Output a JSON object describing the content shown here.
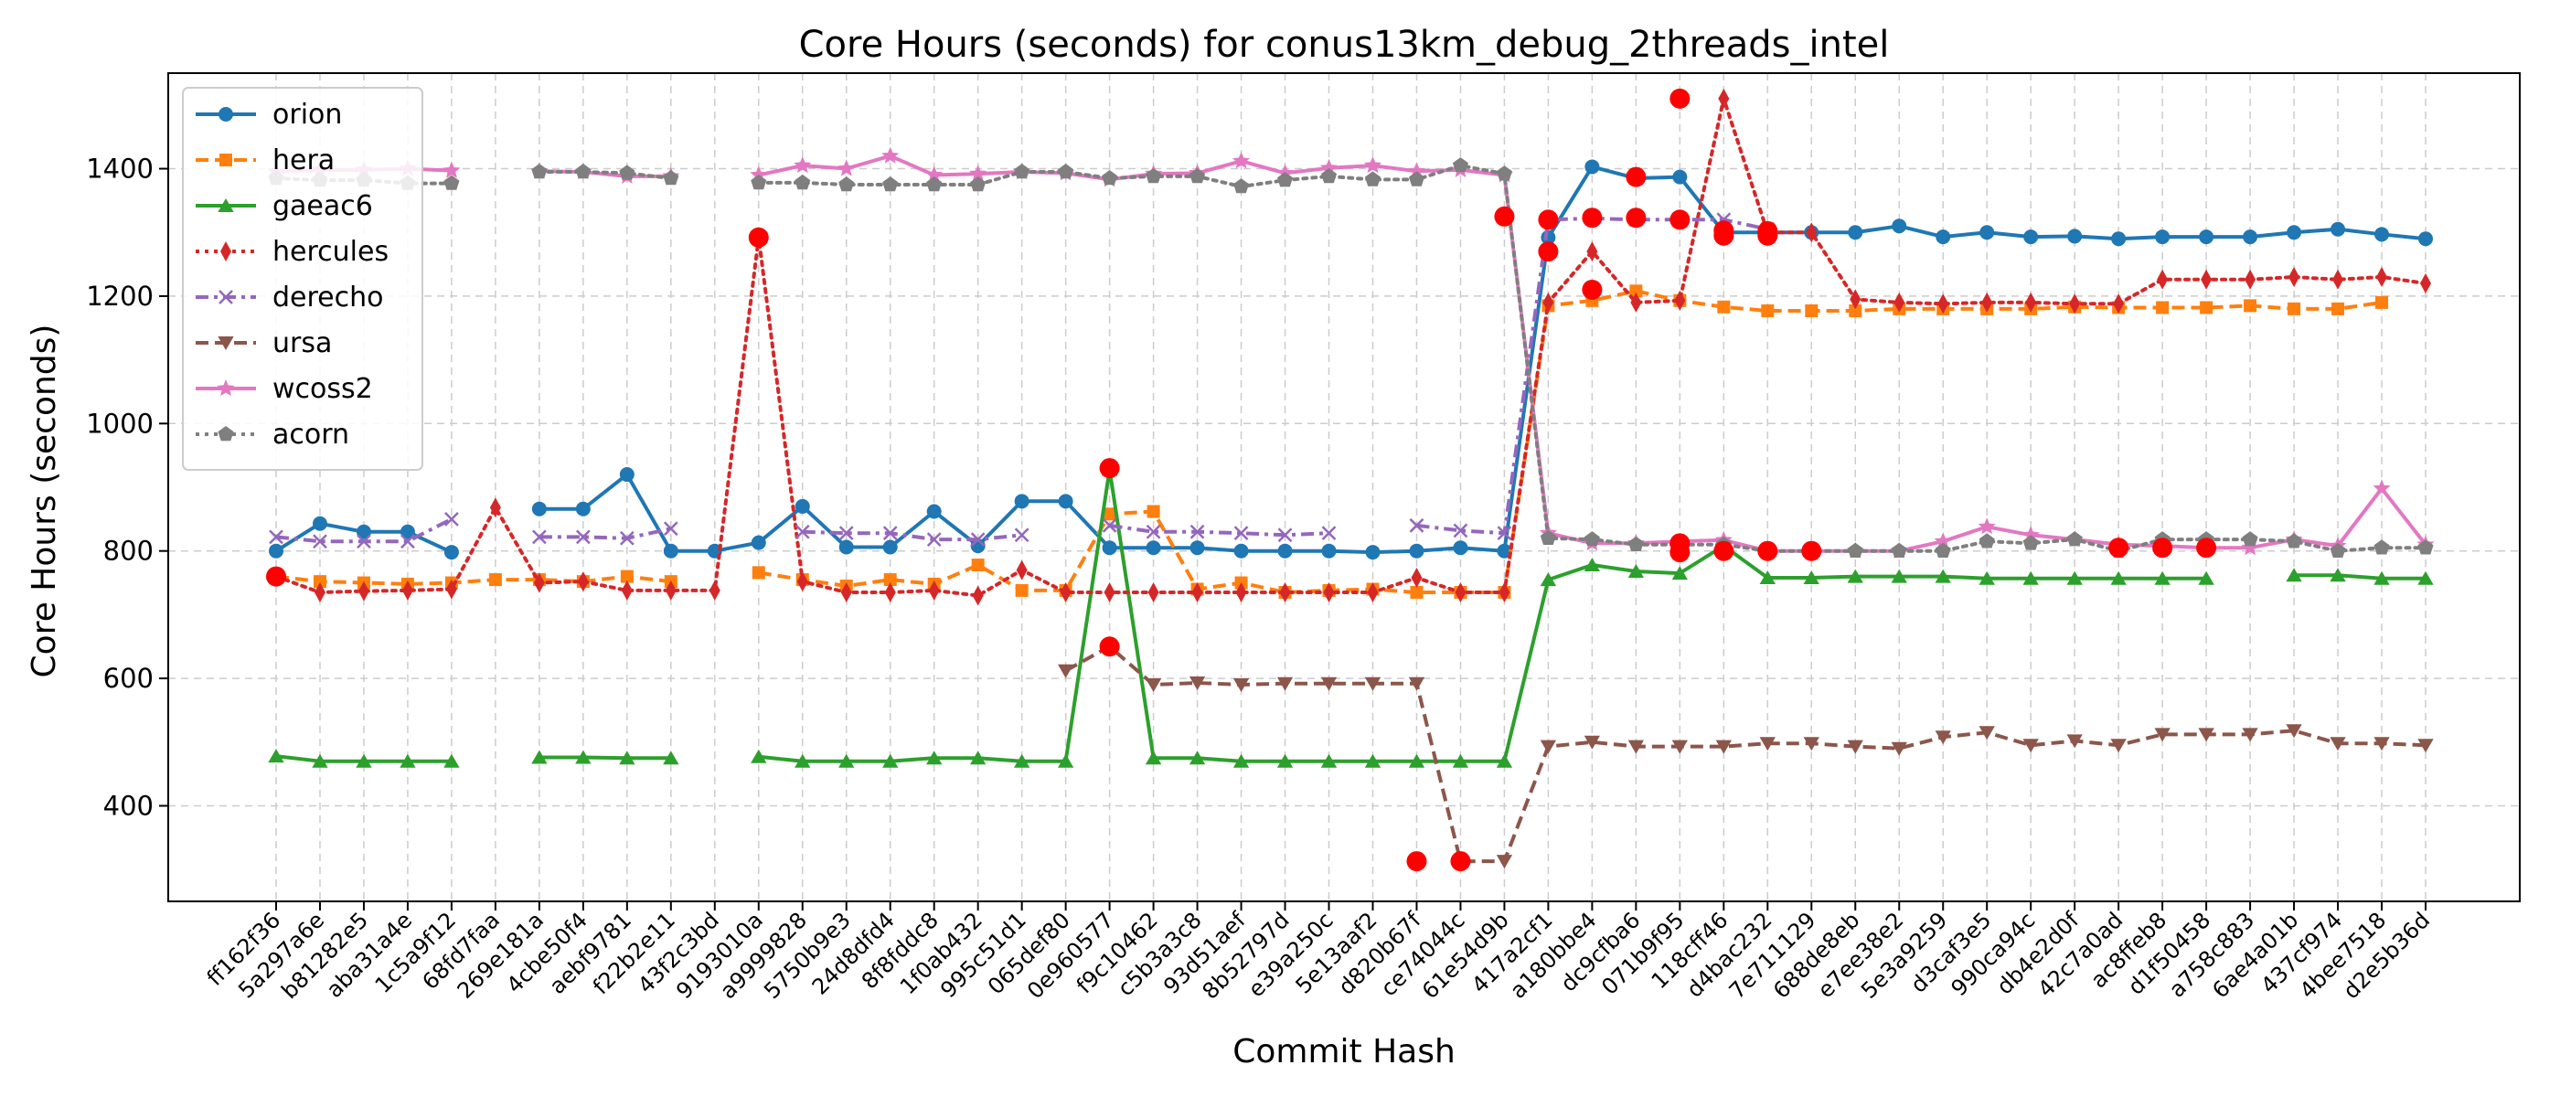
{
  "chart_data": {
    "type": "line",
    "title": "Core Hours (seconds) for conus13km_debug_2threads_intel",
    "xlabel": "Commit Hash",
    "ylabel": "Core Hours (seconds)",
    "ylim": [
      250,
      1550
    ],
    "yticks": [
      400,
      600,
      800,
      1000,
      1200,
      1400
    ],
    "grid": true,
    "legend_position": "top-left",
    "categories": [
      "ff162f36",
      "5a297a6e",
      "b81282e5",
      "aba31a4e",
      "1c5a9f12",
      "68fd7faa",
      "269e181a",
      "4cbe50f4",
      "aebf9781",
      "f22b2e11",
      "43f2c3bd",
      "9193010a",
      "a9999828",
      "5750b9e3",
      "24d8dfd4",
      "8f8fddc8",
      "1f0ab432",
      "995c51d1",
      "065def80",
      "0e960577",
      "f9c10462",
      "c5b3a3c8",
      "93d51aef",
      "8b52797d",
      "e39a250c",
      "5e13aaf2",
      "d820b67f",
      "ce74044c",
      "61e54d9b",
      "417a2cf1",
      "a180bbe4",
      "dc9cfba6",
      "071b9f95",
      "118cff46",
      "d4bac232",
      "7e711129",
      "688de8eb",
      "e7ee38e2",
      "5e3a9259",
      "d3caf3e5",
      "990ca94c",
      "db4e2d0f",
      "42c7a0ad",
      "ac8ffeb8",
      "d1f50458",
      "a758c883",
      "6ae4a01b",
      "437cf974",
      "4bee7518",
      "d2e5b36d"
    ],
    "series": [
      {
        "name": "orion",
        "color": "#1f77b4",
        "style": "solid",
        "marker": "circle",
        "values": [
          800,
          843,
          830,
          830,
          798,
          null,
          866,
          866,
          920,
          800,
          800,
          813,
          870,
          806,
          806,
          862,
          808,
          878,
          878,
          805,
          805,
          805,
          800,
          800,
          800,
          798,
          800,
          805,
          800,
          1292,
          1403,
          1385,
          1387,
          1300,
          1300,
          1300,
          1300,
          1310,
          1293,
          1300,
          1293,
          1294,
          1290,
          1293,
          1293,
          1293,
          1300,
          1305,
          1297,
          1290
        ]
      },
      {
        "name": "hera",
        "color": "#ff7f0e",
        "style": "dashed",
        "marker": "square",
        "values": [
          760,
          752,
          750,
          748,
          750,
          755,
          755,
          752,
          760,
          752,
          null,
          766,
          755,
          745,
          755,
          748,
          778,
          738,
          738,
          858,
          862,
          740,
          750,
          735,
          738,
          740,
          735,
          735,
          735,
          1185,
          1193,
          1208,
          1193,
          1183,
          1177,
          1177,
          1177,
          1180,
          1180,
          1180,
          1180,
          1183,
          1182,
          1182,
          1182,
          1185,
          1180,
          1180,
          1190,
          null
        ]
      },
      {
        "name": "gaeac6",
        "color": "#2ca02c",
        "style": "solid",
        "marker": "triangle",
        "values": [
          478,
          470,
          470,
          470,
          470,
          null,
          476,
          476,
          475,
          475,
          null,
          477,
          470,
          470,
          470,
          475,
          475,
          470,
          470,
          928,
          475,
          475,
          470,
          470,
          470,
          470,
          470,
          470,
          470,
          755,
          778,
          768,
          765,
          808,
          758,
          758,
          760,
          760,
          760,
          757,
          757,
          757,
          757,
          757,
          757,
          null,
          762,
          762,
          757,
          757
        ]
      },
      {
        "name": "hercules",
        "color": "#d62728",
        "style": "dotted",
        "marker": "diamond",
        "values": [
          760,
          735,
          737,
          738,
          740,
          868,
          750,
          752,
          738,
          738,
          738,
          1292,
          752,
          735,
          735,
          738,
          730,
          770,
          735,
          735,
          735,
          735,
          735,
          735,
          735,
          735,
          758,
          735,
          735,
          1190,
          1270,
          1190,
          1193,
          1510,
          1300,
          1300,
          1195,
          1190,
          1188,
          1190,
          1190,
          1188,
          1188,
          1226,
          1226,
          1226,
          1230,
          1226,
          1230,
          1220
        ]
      },
      {
        "name": "derecho",
        "color": "#9467bd",
        "style": "dashdot",
        "marker": "x",
        "values": [
          822,
          815,
          815,
          815,
          850,
          null,
          822,
          822,
          820,
          835,
          null,
          null,
          830,
          828,
          828,
          818,
          818,
          825,
          null,
          840,
          830,
          830,
          828,
          825,
          828,
          null,
          840,
          832,
          828,
          1320,
          1322,
          1320,
          1320,
          1320,
          1305,
          null,
          null,
          null,
          null,
          null,
          null,
          null,
          null,
          null,
          null,
          null,
          null,
          null,
          null,
          null
        ]
      },
      {
        "name": "ursa",
        "color": "#8c564b",
        "style": "dashed",
        "marker": "triangle-down",
        "values": [
          null,
          null,
          null,
          null,
          null,
          null,
          null,
          null,
          null,
          null,
          null,
          null,
          null,
          null,
          null,
          null,
          null,
          null,
          612,
          650,
          590,
          593,
          590,
          592,
          592,
          592,
          592,
          313,
          313,
          493,
          500,
          493,
          493,
          493,
          498,
          498,
          493,
          490,
          508,
          515,
          495,
          502,
          495,
          512,
          512,
          512,
          518,
          498,
          498,
          495
        ]
      },
      {
        "name": "wcoss2",
        "color": "#e377c2",
        "style": "solid",
        "marker": "star",
        "values": [
          1395,
          1398,
          1398,
          1400,
          1397,
          null,
          1396,
          1395,
          1388,
          1388,
          null,
          1390,
          1405,
          1400,
          1420,
          1390,
          1392,
          1395,
          1393,
          1383,
          1392,
          1393,
          1412,
          1393,
          1401,
          1405,
          1396,
          1398,
          1390,
          828,
          812,
          812,
          815,
          817,
          800,
          800,
          800,
          800,
          815,
          838,
          825,
          818,
          810,
          808,
          805,
          805,
          818,
          808,
          898,
          810
        ]
      },
      {
        "name": "acorn",
        "color": "#7f7f7f",
        "style": "dotted",
        "marker": "pentagon",
        "values": [
          1385,
          1382,
          1382,
          1377,
          1377,
          null,
          1395,
          1395,
          1393,
          1385,
          null,
          1378,
          1378,
          1375,
          1375,
          1375,
          1375,
          1395,
          1395,
          1385,
          1388,
          1388,
          1372,
          1382,
          1388,
          1383,
          1383,
          1405,
          1392,
          820,
          818,
          810,
          810,
          810,
          800,
          800,
          800,
          800,
          800,
          815,
          812,
          818,
          800,
          818,
          818,
          818,
          815,
          800,
          805,
          805
        ]
      }
    ],
    "highlighted_points": [
      {
        "x": "ff162f36",
        "y": 760
      },
      {
        "x": "9193010a",
        "y": 1292
      },
      {
        "x": "0e960577",
        "y": 930
      },
      {
        "x": "0e960577",
        "y": 650
      },
      {
        "x": "d820b67f",
        "y": 313
      },
      {
        "x": "ce74044c",
        "y": 313
      },
      {
        "x": "61e54d9b",
        "y": 1325
      },
      {
        "x": "417a2cf1",
        "y": 1320
      },
      {
        "x": "417a2cf1",
        "y": 1270
      },
      {
        "x": "a180bbe4",
        "y": 1323
      },
      {
        "x": "a180bbe4",
        "y": 1210
      },
      {
        "x": "dc9cfba6",
        "y": 1323
      },
      {
        "x": "071b9f95",
        "y": 1510
      },
      {
        "x": "071b9f95",
        "y": 1320
      },
      {
        "x": "118cff46",
        "y": 1303
      },
      {
        "x": "118cff46",
        "y": 1295
      },
      {
        "x": "d4bac232",
        "y": 1302
      },
      {
        "x": "d4bac232",
        "y": 1295
      },
      {
        "x": "dc9cfba6",
        "y": 1387
      },
      {
        "x": "071b9f95",
        "y": 812
      },
      {
        "x": "071b9f95",
        "y": 798
      },
      {
        "x": "118cff46",
        "y": 800
      },
      {
        "x": "d4bac232",
        "y": 800
      },
      {
        "x": "7e711129",
        "y": 800
      },
      {
        "x": "42c7a0ad",
        "y": 805
      },
      {
        "x": "ac8ffeb8",
        "y": 805
      },
      {
        "x": "d1f50458",
        "y": 805
      }
    ],
    "highlight_color": "#ff0000"
  }
}
